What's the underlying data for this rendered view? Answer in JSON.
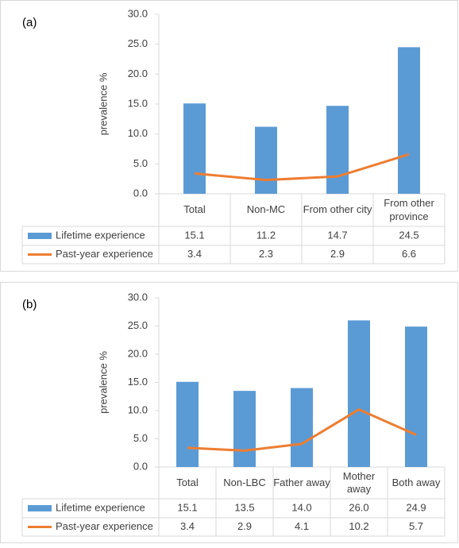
{
  "chart_data": [
    {
      "type": "bar",
      "title": "(a)",
      "ylabel": "prevalence %",
      "categories": [
        "Total",
        "Non-MC",
        "From other city",
        "From other province"
      ],
      "series": [
        {
          "name": "Lifetime experience",
          "type": "bar",
          "color": "#5b9bd5",
          "values": [
            15.1,
            11.2,
            14.7,
            24.5
          ],
          "value_labels": [
            "15.1",
            "11.2",
            "14.7",
            "24.5"
          ]
        },
        {
          "name": "Past-year experience",
          "type": "line",
          "color": "#ed7d31",
          "values": [
            3.4,
            2.3,
            2.9,
            6.6
          ],
          "value_labels": [
            "3.4",
            "2.3",
            "2.9",
            "6.6"
          ]
        }
      ],
      "ylim": [
        0,
        30
      ],
      "yticks": [
        {
          "value": 0,
          "label": "0.0"
        },
        {
          "value": 5,
          "label": "5.0"
        },
        {
          "value": 10,
          "label": "10.0"
        },
        {
          "value": 15,
          "label": "15.0"
        },
        {
          "value": 20,
          "label": "20.0"
        },
        {
          "value": 25,
          "label": "25.0"
        },
        {
          "value": 30,
          "label": "30.0"
        }
      ]
    },
    {
      "type": "bar",
      "title": "(b)",
      "ylabel": "prevalence %",
      "categories": [
        "Total",
        "Non-LBC",
        "Father away",
        "Mother away",
        "Both away"
      ],
      "series": [
        {
          "name": "Lifetime experience",
          "type": "bar",
          "color": "#5b9bd5",
          "values": [
            15.1,
            13.5,
            14.0,
            26.0,
            24.9
          ],
          "value_labels": [
            "15.1",
            "13.5",
            "14.0",
            "26.0",
            "24.9"
          ]
        },
        {
          "name": "Past-year experience",
          "type": "line",
          "color": "#ed7d31",
          "values": [
            3.4,
            2.9,
            4.1,
            10.2,
            5.7
          ],
          "value_labels": [
            "3.4",
            "2.9",
            "4.1",
            "10.2",
            "5.7"
          ]
        }
      ],
      "ylim": [
        0,
        30
      ],
      "yticks": [
        {
          "value": 0,
          "label": "0.0"
        },
        {
          "value": 5,
          "label": "5.0"
        },
        {
          "value": 10,
          "label": "10.0"
        },
        {
          "value": 15,
          "label": "15.0"
        },
        {
          "value": 20,
          "label": "20.0"
        },
        {
          "value": 25,
          "label": "25.0"
        },
        {
          "value": 30,
          "label": "30.0"
        }
      ]
    }
  ]
}
